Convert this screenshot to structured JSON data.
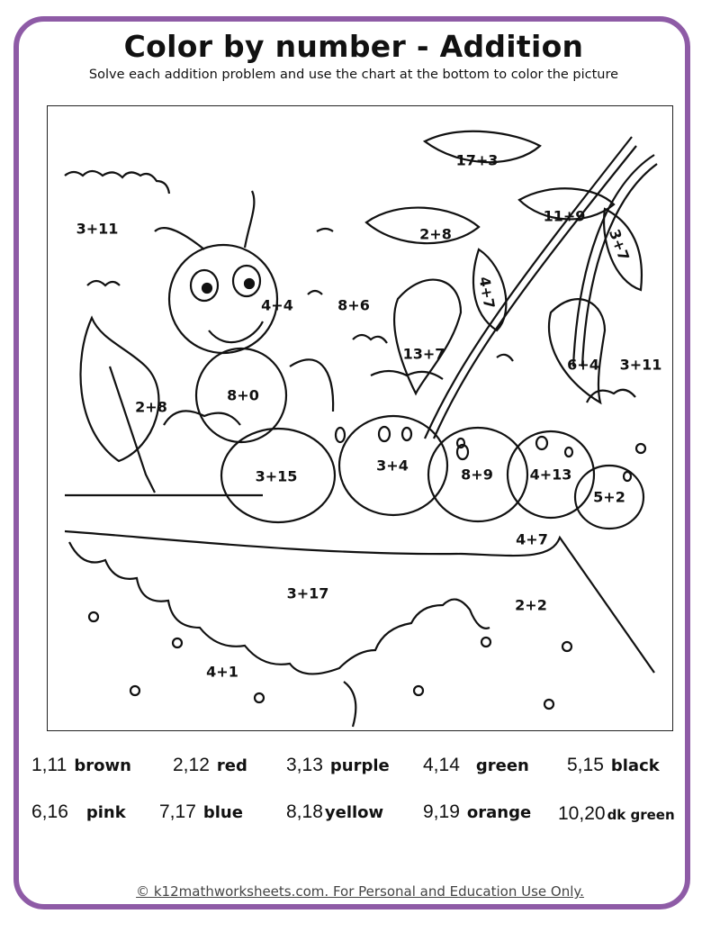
{
  "title": "Color by number - Addition",
  "subtitle": "Solve each addition problem and use the chart at the bottom to color the picture",
  "colors": {
    "frame": "#8e5ba6"
  },
  "picture_labels": [
    "17+3",
    "3+11",
    "2+8",
    "11+9",
    "3+7",
    "4+7",
    "4+4",
    "8+6",
    "13+7",
    "6+4",
    "3+11",
    "2+8",
    "8+0",
    "3+4",
    "8+9",
    "4+13",
    "3+15",
    "5+2",
    "4+7",
    "3+17",
    "2+2",
    "4+1"
  ],
  "key": [
    {
      "numbers": "1,11",
      "color": "brown"
    },
    {
      "numbers": "2,12",
      "color": "red"
    },
    {
      "numbers": "3,13",
      "color": "purple"
    },
    {
      "numbers": "4,14",
      "color": "green"
    },
    {
      "numbers": "5,15",
      "color": "black"
    },
    {
      "numbers": "6,16",
      "color": "pink"
    },
    {
      "numbers": "7,17",
      "color": "blue"
    },
    {
      "numbers": "8,18",
      "color": "yellow"
    },
    {
      "numbers": "9,19",
      "color": "orange"
    },
    {
      "numbers": "10,20",
      "color": "dk green"
    }
  ],
  "footer": "© k12mathworksheets.com. For Personal and Education Use Only."
}
